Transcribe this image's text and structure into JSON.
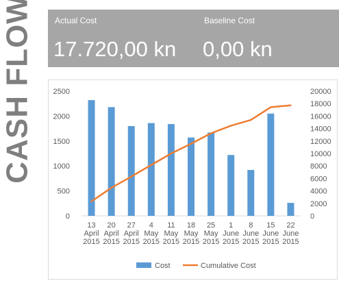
{
  "side_title": "CASH FLOW",
  "kpis": {
    "actual": {
      "label": "Actual Cost",
      "value": "17.720,00 kn"
    },
    "baseline": {
      "label": "Baseline Cost",
      "value": "0,00 kn"
    }
  },
  "colors": {
    "bar": "#5b9bd5",
    "line": "#ed7d31",
    "kpi_bg": "#a6a6a6",
    "title": "#7f7f7f"
  },
  "chart_data": {
    "type": "bar",
    "categories": [
      [
        "13",
        "April",
        "2015"
      ],
      [
        "20",
        "April",
        "2015"
      ],
      [
        "27",
        "April",
        "2015"
      ],
      [
        "4",
        "May",
        "2015"
      ],
      [
        "11",
        "May",
        "2015"
      ],
      [
        "18",
        "May",
        "2015"
      ],
      [
        "25",
        "May",
        "2015"
      ],
      [
        "1",
        "June",
        "2015"
      ],
      [
        "8",
        "June",
        "2015"
      ],
      [
        "15",
        "June",
        "2015"
      ],
      [
        "22",
        "June",
        "2015"
      ]
    ],
    "series": [
      {
        "name": "Cost",
        "type": "bar",
        "axis": "left",
        "values": [
          2320,
          2180,
          1800,
          1860,
          1840,
          1570,
          1670,
          1220,
          920,
          2050,
          260
        ]
      },
      {
        "name": "Cumulative Cost",
        "type": "line",
        "axis": "right",
        "values": [
          2320,
          4500,
          6300,
          8160,
          10000,
          11570,
          13240,
          14460,
          15380,
          17430,
          17720
        ]
      }
    ],
    "ylim": [
      0,
      2500
    ],
    "yticks": [
      0,
      500,
      1000,
      1500,
      2000,
      2500
    ],
    "y2lim": [
      0,
      20000
    ],
    "y2ticks": [
      0,
      2000,
      4000,
      6000,
      8000,
      10000,
      12000,
      14000,
      16000,
      18000,
      20000
    ],
    "legend": "bottom",
    "grid": false
  }
}
